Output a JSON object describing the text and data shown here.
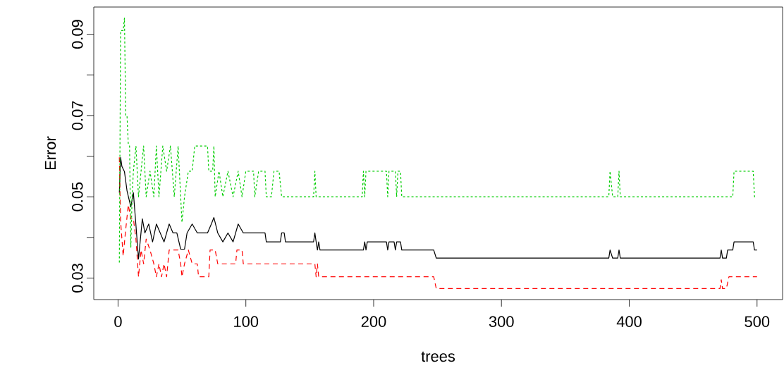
{
  "chart_data": {
    "type": "line",
    "xlabel": "trees",
    "ylabel": "Error",
    "xlim": [
      -19,
      520
    ],
    "ylim": [
      0.0247,
      0.0967
    ],
    "xticks": [
      0,
      100,
      200,
      300,
      400,
      500
    ],
    "yticks": [
      0.03,
      {
        "value": 0.04,
        "label": null
      },
      0.05,
      {
        "value": 0.06,
        "label": null
      },
      0.07,
      {
        "value": 0.08,
        "label": null
      },
      0.09
    ],
    "marker": "none",
    "series": [
      {
        "color": "#000000",
        "line_style": "solid",
        "x": [
          1,
          2,
          3,
          5,
          7,
          10,
          12,
          14,
          16,
          19,
          21,
          24,
          27,
          30,
          33,
          36,
          40,
          43,
          46,
          49,
          52,
          54,
          58,
          62,
          66,
          70,
          73,
          75,
          78,
          82,
          86,
          90,
          94,
          98,
          104,
          108,
          115,
          116,
          127,
          128,
          130,
          131,
          153,
          154,
          155,
          156,
          157,
          158,
          192,
          193,
          194,
          195,
          210,
          211,
          212,
          216,
          217,
          218,
          221,
          222,
          247,
          249,
          384,
          385,
          387,
          391,
          392,
          393,
          471,
          472,
          473,
          476,
          477,
          481,
          482,
          497,
          498,
          500
        ],
        "values": [
          0.051,
          0.0597,
          0.0575,
          0.0562,
          0.0515,
          0.0475,
          0.051,
          0.043,
          0.0347,
          0.0446,
          0.0411,
          0.0433,
          0.0389,
          0.0433,
          0.0411,
          0.0389,
          0.0433,
          0.0411,
          0.0411,
          0.0371,
          0.0371,
          0.0411,
          0.0433,
          0.0411,
          0.0411,
          0.0411,
          0.0433,
          0.0449,
          0.0411,
          0.0389,
          0.0411,
          0.0389,
          0.0433,
          0.0411,
          0.0411,
          0.0411,
          0.0411,
          0.0389,
          0.0389,
          0.0411,
          0.0411,
          0.0389,
          0.0389,
          0.0411,
          0.0389,
          0.0369,
          0.0389,
          0.0369,
          0.0369,
          0.0389,
          0.0369,
          0.0389,
          0.0389,
          0.0369,
          0.0389,
          0.0389,
          0.0369,
          0.0389,
          0.0389,
          0.0369,
          0.0369,
          0.0349,
          0.0349,
          0.0369,
          0.0349,
          0.0349,
          0.0369,
          0.0349,
          0.0349,
          0.0369,
          0.0349,
          0.0349,
          0.0369,
          0.0369,
          0.0389,
          0.0389,
          0.0369,
          0.0369
        ]
      },
      {
        "color": "#ff0000",
        "line_style": "dashed",
        "x": [
          1,
          2,
          4,
          6,
          8,
          10,
          12,
          14,
          16,
          18,
          20,
          22,
          25,
          28,
          30,
          32,
          34,
          36,
          38,
          40,
          47,
          49,
          50,
          52,
          55,
          58,
          62,
          63,
          71,
          72,
          76,
          78,
          80,
          92,
          93,
          97,
          98,
          154,
          155,
          156,
          157,
          247,
          249,
          471,
          472,
          473,
          476,
          478,
          500
        ],
        "values": [
          0.0597,
          0.044,
          0.0354,
          0.042,
          0.048,
          0.0446,
          0.0446,
          0.0396,
          0.0303,
          0.0369,
          0.0335,
          0.0396,
          0.0369,
          0.0335,
          0.0303,
          0.0335,
          0.0303,
          0.0335,
          0.0303,
          0.0369,
          0.0369,
          0.0335,
          0.0303,
          0.0335,
          0.0369,
          0.0335,
          0.0335,
          0.0303,
          0.0303,
          0.0369,
          0.0369,
          0.0335,
          0.0335,
          0.0335,
          0.0369,
          0.0369,
          0.0335,
          0.0335,
          0.0303,
          0.0335,
          0.0303,
          0.0303,
          0.0274,
          0.0274,
          0.0296,
          0.0274,
          0.0274,
          0.0303,
          0.0303
        ]
      },
      {
        "color": "#00cd00",
        "line_style": "dotted",
        "x": [
          1,
          2,
          4,
          5,
          6,
          7,
          8,
          9,
          10,
          11,
          12,
          14,
          16,
          18,
          20,
          22,
          25,
          28,
          30,
          32,
          35,
          38,
          41,
          44,
          47,
          50,
          52,
          55,
          58,
          60,
          70,
          71,
          74,
          75,
          76,
          79,
          82,
          86,
          90,
          94,
          97,
          100,
          106,
          107,
          110,
          115,
          116,
          120,
          122,
          126,
          128,
          153,
          154,
          155,
          191,
          192,
          193,
          194,
          210,
          211,
          212,
          217,
          218,
          219,
          221,
          222,
          384,
          385,
          387,
          391,
          392,
          393,
          481,
          482,
          497,
          498,
          500
        ],
        "values": [
          0.0338,
          0.0909,
          0.0909,
          0.094,
          0.07,
          0.07,
          0.063,
          0.0625,
          0.0376,
          0.05,
          0.0563,
          0.0625,
          0.05,
          0.0563,
          0.0625,
          0.05,
          0.0563,
          0.05,
          0.0625,
          0.05,
          0.0625,
          0.0563,
          0.0625,
          0.05,
          0.0625,
          0.0437,
          0.05,
          0.0563,
          0.0563,
          0.0625,
          0.0625,
          0.0563,
          0.0563,
          0.0625,
          0.05,
          0.0563,
          0.05,
          0.0563,
          0.05,
          0.0563,
          0.05,
          0.0563,
          0.0563,
          0.05,
          0.0563,
          0.0563,
          0.05,
          0.05,
          0.0563,
          0.0563,
          0.05,
          0.05,
          0.0563,
          0.05,
          0.05,
          0.0563,
          0.05,
          0.0563,
          0.0563,
          0.05,
          0.0563,
          0.0563,
          0.05,
          0.0563,
          0.0563,
          0.05,
          0.05,
          0.0563,
          0.05,
          0.05,
          0.0563,
          0.05,
          0.05,
          0.0563,
          0.0563,
          0.05,
          0.05
        ]
      }
    ]
  }
}
